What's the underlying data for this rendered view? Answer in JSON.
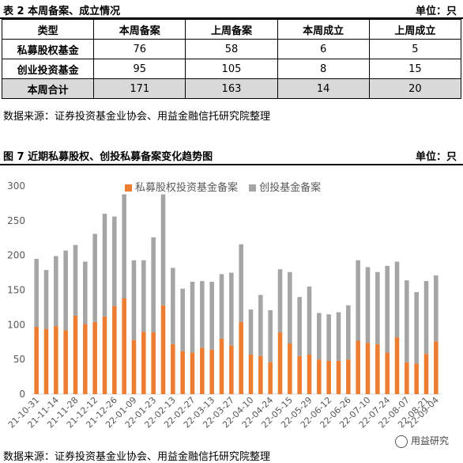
{
  "table_header": {
    "title": "表 2 本周备案、成立情况",
    "unit": "单位：只"
  },
  "table": {
    "columns": [
      "类型",
      "本周备案",
      "上周备案",
      "本周成立",
      "上周成立"
    ],
    "rows": [
      [
        "私募股权基金",
        "76",
        "58",
        "6",
        "5"
      ],
      [
        "创业投资基金",
        "95",
        "105",
        "8",
        "15"
      ],
      [
        "本周合计",
        "171",
        "163",
        "14",
        "20"
      ]
    ]
  },
  "source_1": "数据来源：证券投资基金业协会、用益金融信托研究院整理",
  "chart_header": {
    "title": "图 7 近期私募股权、创投私募备案变化趋势图",
    "unit": "单位：只"
  },
  "chart_data": {
    "type": "bar",
    "stacked": true,
    "title": "近期私募股权、创投私募备案变化趋势图",
    "ylim": [
      0,
      300
    ],
    "yticks": [
      0,
      50,
      100,
      150,
      200,
      250,
      300
    ],
    "grid": false,
    "legend_position": "top",
    "series": [
      {
        "name": "私募股权投资基金备案",
        "color": "#ed7d31",
        "values": [
          97,
          94,
          98,
          92,
          113,
          101,
          104,
          112,
          127,
          138,
          78,
          90,
          89,
          128,
          72,
          62,
          60,
          67,
          64,
          80,
          70,
          104,
          57,
          55,
          46,
          89,
          73,
          55,
          57,
          50,
          48,
          48,
          50,
          77,
          74,
          72,
          60,
          82,
          46,
          44,
          58,
          76
        ]
      },
      {
        "name": "创投基金备案",
        "color": "#a5a5a5",
        "values": [
          98,
          85,
          101,
          115,
          102,
          90,
          127,
          148,
          129,
          150,
          115,
          103,
          137,
          160,
          110,
          90,
          102,
          96,
          98,
          93,
          105,
          112,
          65,
          88,
          75,
          91,
          103,
          85,
          98,
          67,
          67,
          70,
          78,
          116,
          109,
          104,
          125,
          109,
          118,
          103,
          105,
          95
        ]
      }
    ],
    "categories": [
      "21-10-31",
      "21-11-07",
      "21-11-14",
      "21-11-21",
      "21-11-28",
      "21-12-05",
      "21-12-12",
      "21-12-19",
      "21-12-26",
      "22-01-02",
      "22-01-09",
      "22-01-16",
      "22-01-23",
      "22-01-30",
      "22-02-13",
      "22-02-20",
      "22-02-27",
      "22-03-06",
      "22-03-13",
      "22-03-20",
      "22-03-27",
      "22-04-03",
      "22-04-10",
      "22-04-17",
      "22-04-24",
      "22-05-01",
      "22-05-15",
      "22-05-22",
      "22-05-29",
      "22-06-05",
      "22-06-12",
      "22-06-19",
      "22-06-26",
      "22-07-03",
      "22-07-10",
      "22-07-17",
      "22-07-24",
      "22-07-31",
      "22-08-07",
      "22-08-14",
      "22-08-21",
      "22-09-04"
    ],
    "visible_tick_labels": [
      "21-10-31",
      "21-11-14",
      "21-11-28",
      "21-12-12",
      "21-12-26",
      "22-01-09",
      "22-01-23",
      "22-02-13",
      "22-02-27",
      "22-03-13",
      "22-03-27",
      "22-04-10",
      "22-04-24",
      "22-05-15",
      "22-05-29",
      "22-06-12",
      "22-06-26",
      "22-07-10",
      "22-07-24",
      "22-08-07",
      "22-08-21",
      "22-09-04"
    ]
  },
  "watermark": "用益研究",
  "source_2": "数据来源：证券投资基金业协会、用益金融信托研究院整理"
}
